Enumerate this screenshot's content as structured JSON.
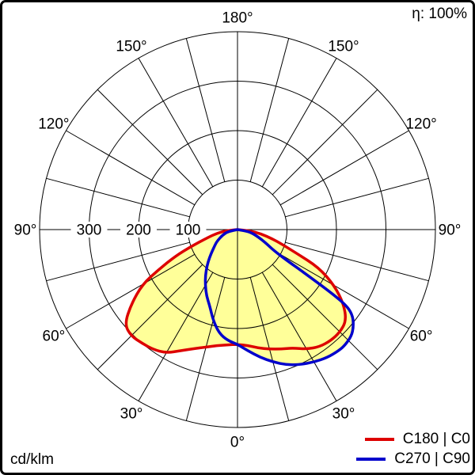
{
  "chart_data": {
    "type": "polar",
    "variant": "luminous-intensity-distribution",
    "unit_label": "cd/klm",
    "efficiency_label": "η: 100%",
    "rmax": 400,
    "radial_circles": [
      100,
      200,
      300,
      400
    ],
    "radial_axis_labels": [
      {
        "value": 300,
        "text": "300"
      },
      {
        "value": 200,
        "text": "200"
      },
      {
        "value": 100,
        "text": "100"
      }
    ],
    "angle_grid_step_deg": 15,
    "angle_label_step_deg": 30,
    "angle_labels": [
      {
        "gamma": 180,
        "text": "180°"
      },
      {
        "gamma": -150,
        "text": "150°"
      },
      {
        "gamma": 150,
        "text": "150°"
      },
      {
        "gamma": -120,
        "text": "120°"
      },
      {
        "gamma": 120,
        "text": "120°"
      },
      {
        "gamma": -90,
        "text": "90°"
      },
      {
        "gamma": 90,
        "text": "90°"
      },
      {
        "gamma": -60,
        "text": "60°"
      },
      {
        "gamma": 60,
        "text": "60°"
      },
      {
        "gamma": -30,
        "text": "30°"
      },
      {
        "gamma": 30,
        "text": "30°"
      },
      {
        "gamma": 0,
        "text": "0°"
      }
    ],
    "fill_color": "#ffff99",
    "grid_color": "#000000",
    "background_color": "#ffffff",
    "series": [
      {
        "name": "C180 | C0",
        "color": "#dd0000",
        "points": [
          [
            -90,
            0
          ],
          [
            -85,
            22
          ],
          [
            -80,
            42
          ],
          [
            -75,
            62
          ],
          [
            -70,
            100
          ],
          [
            -67,
            135
          ],
          [
            -63,
            180
          ],
          [
            -60,
            222
          ],
          [
            -55,
            262
          ],
          [
            -50,
            298
          ],
          [
            -45,
            304
          ],
          [
            -40,
            300
          ],
          [
            -35,
            296
          ],
          [
            -30,
            288
          ],
          [
            -25,
            270
          ],
          [
            -20,
            256
          ],
          [
            -15,
            246
          ],
          [
            -10,
            238
          ],
          [
            -5,
            234
          ],
          [
            0,
            232
          ],
          [
            5,
            235
          ],
          [
            10,
            243
          ],
          [
            15,
            250
          ],
          [
            20,
            257
          ],
          [
            25,
            264
          ],
          [
            30,
            279
          ],
          [
            35,
            289
          ],
          [
            40,
            293
          ],
          [
            45,
            293
          ],
          [
            50,
            287
          ],
          [
            55,
            262
          ],
          [
            60,
            226
          ],
          [
            65,
            181
          ],
          [
            68,
            130
          ],
          [
            72,
            93
          ],
          [
            75,
            73
          ],
          [
            80,
            48
          ],
          [
            85,
            24
          ],
          [
            90,
            0
          ]
        ]
      },
      {
        "name": "C270 | C90",
        "color": "#0000cc",
        "points": [
          [
            -90,
            0
          ],
          [
            -80,
            18
          ],
          [
            -70,
            32
          ],
          [
            -60,
            48
          ],
          [
            -55,
            56
          ],
          [
            -50,
            66
          ],
          [
            -45,
            80
          ],
          [
            -40,
            96
          ],
          [
            -35,
            113
          ],
          [
            -30,
            130
          ],
          [
            -25,
            148
          ],
          [
            -20,
            164
          ],
          [
            -15,
            190
          ],
          [
            -10,
            213
          ],
          [
            -5,
            225
          ],
          [
            0,
            232
          ],
          [
            5,
            246
          ],
          [
            10,
            262
          ],
          [
            15,
            277
          ],
          [
            20,
            291
          ],
          [
            25,
            301
          ],
          [
            30,
            309
          ],
          [
            35,
            316
          ],
          [
            40,
            319
          ],
          [
            43,
            319
          ],
          [
            47,
            315
          ],
          [
            50,
            306
          ],
          [
            53,
            292
          ],
          [
            55,
            272
          ],
          [
            56,
            230
          ],
          [
            57,
            165
          ],
          [
            58,
            118
          ],
          [
            60,
            85
          ],
          [
            65,
            62
          ],
          [
            70,
            45
          ],
          [
            75,
            33
          ],
          [
            80,
            22
          ],
          [
            90,
            0
          ]
        ]
      }
    ]
  },
  "legend": {
    "items": [
      {
        "label": "C180 | C0",
        "color": "#dd0000"
      },
      {
        "label": "C270 | C90",
        "color": "#0000cc"
      }
    ]
  }
}
